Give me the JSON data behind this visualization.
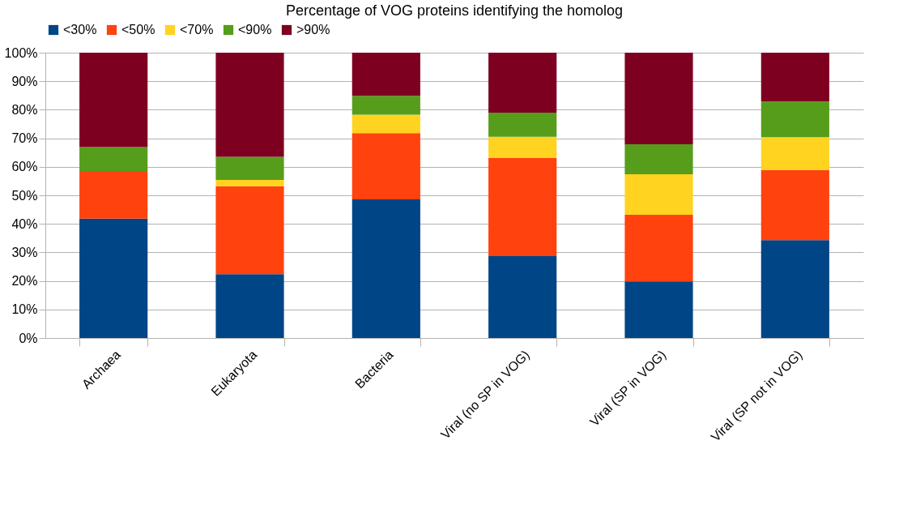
{
  "chart_data": {
    "type": "bar",
    "stacked": true,
    "title": "Percentage of VOG proteins identifying the homolog",
    "categories": [
      "Archaea",
      "Eukaryota",
      "Bacteria",
      "Viral (no SP in VOG)",
      "Viral (SP in VOG)",
      "Viral (SP not in VOG)"
    ],
    "series": [
      {
        "name": "<30%",
        "color": "#004586",
        "values": [
          41.8,
          22.4,
          48.6,
          28.7,
          19.8,
          34.3
        ]
      },
      {
        "name": "<50%",
        "color": "#ff420e",
        "values": [
          16.7,
          30.8,
          23.2,
          34.4,
          23.4,
          24.6
        ]
      },
      {
        "name": "<70%",
        "color": "#ffd320",
        "values": [
          0,
          2.2,
          6.5,
          7.4,
          14.2,
          11.5
        ]
      },
      {
        "name": "<90%",
        "color": "#579d1c",
        "values": [
          8.4,
          8.1,
          6.6,
          8.5,
          10.5,
          12.5
        ]
      },
      {
        "name": ">90%",
        "color": "#7e0021",
        "values": [
          33.1,
          36.5,
          15.1,
          21.0,
          32.1,
          17.1
        ]
      }
    ],
    "ylim": [
      0,
      100
    ],
    "yticks": [
      {
        "value": 0,
        "label": "0%"
      },
      {
        "value": 10,
        "label": "10%"
      },
      {
        "value": 20,
        "label": "20%"
      },
      {
        "value": 30,
        "label": "30%"
      },
      {
        "value": 40,
        "label": "40%"
      },
      {
        "value": 50,
        "label": "50%"
      },
      {
        "value": 60,
        "label": "60%"
      },
      {
        "value": 70,
        "label": "70%"
      },
      {
        "value": 80,
        "label": "80%"
      },
      {
        "value": 90,
        "label": "90%"
      },
      {
        "value": 100,
        "label": "100%"
      }
    ],
    "grid": "y",
    "legend": "top"
  }
}
